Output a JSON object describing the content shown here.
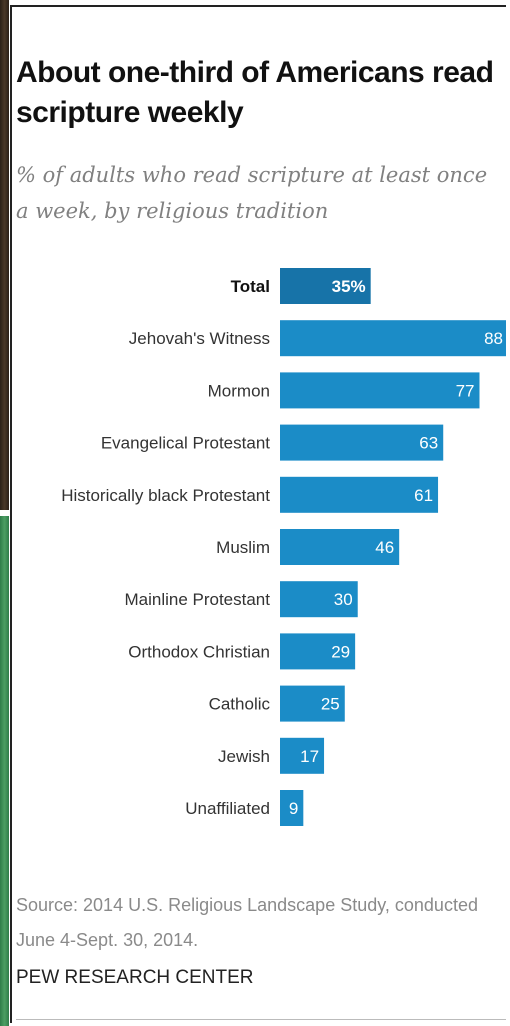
{
  "title": "About one-third of Americans read scripture weekly",
  "subtitle": "% of adults who read scripture at least once a week, by religious tradition",
  "source": "Source: 2014 U.S. Religious Landscape Study, conducted June 4-Sept. 30, 2014.",
  "brand": "PEW RESEARCH CENTER",
  "colors": {
    "bar": "#1b8cc7",
    "total_bar": "#1773a8",
    "bar_label": "#ffffff",
    "category_label": "#333333"
  },
  "chart_data": {
    "type": "bar",
    "orientation": "horizontal",
    "categories": [
      "Total",
      "Jehovah's Witness",
      "Mormon",
      "Evangelical Protestant",
      "Historically black Protestant",
      "Muslim",
      "Mainline Protestant",
      "Orthodox Christian",
      "Catholic",
      "Jewish",
      "Unaffiliated"
    ],
    "values": [
      35,
      88,
      77,
      63,
      61,
      46,
      30,
      29,
      25,
      17,
      9
    ],
    "value_labels": [
      "35%",
      "88",
      "77",
      "63",
      "61",
      "46",
      "30",
      "29",
      "25",
      "17",
      "9"
    ],
    "highlight": "Total",
    "xlim": [
      0,
      88
    ],
    "grid": false
  }
}
